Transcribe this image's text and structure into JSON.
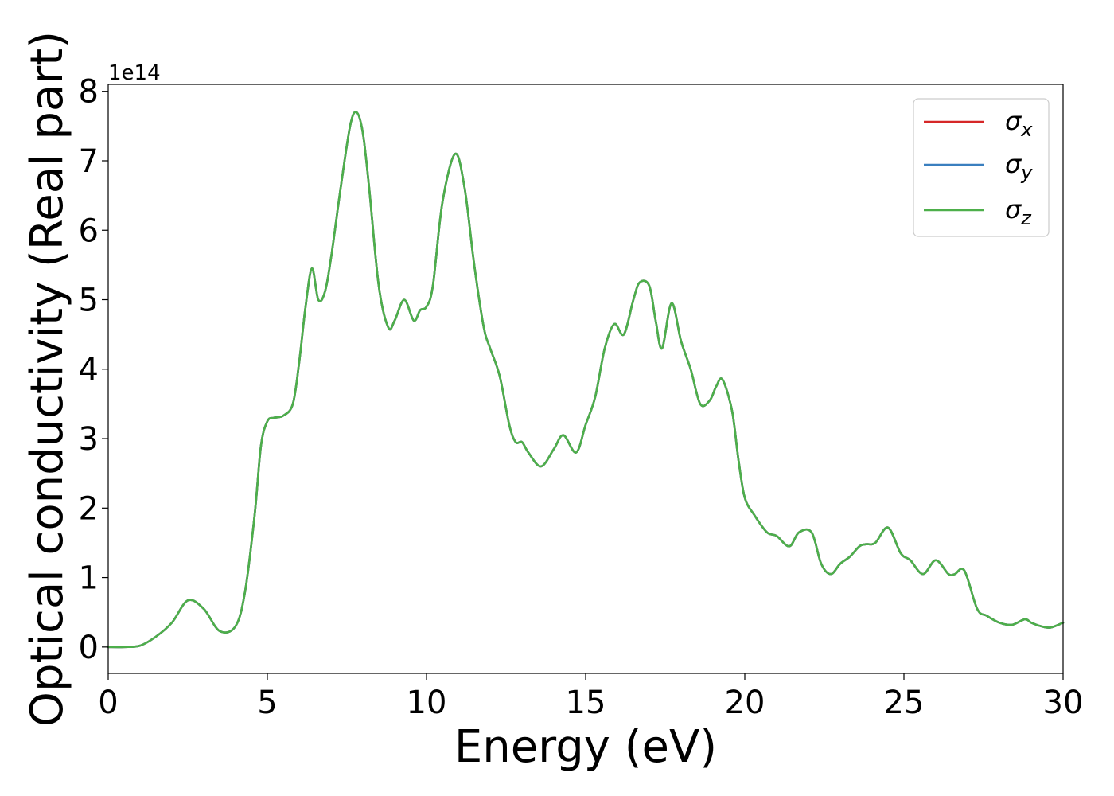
{
  "chart_data": {
    "type": "line",
    "title": "",
    "xlabel": "Energy (eV)",
    "ylabel": "Optical conductivity (Real part)",
    "y_offset_label": "1e14",
    "y_scale_factor": 100000000000000.0,
    "xlim": [
      0,
      30
    ],
    "ylim": [
      -0.38,
      8.1
    ],
    "x_ticks": [
      0,
      5,
      10,
      15,
      20,
      25,
      30
    ],
    "x_tick_labels": [
      "0",
      "5",
      "10",
      "15",
      "20",
      "25",
      "30"
    ],
    "y_ticks": [
      0,
      1,
      2,
      3,
      4,
      5,
      6,
      7,
      8
    ],
    "y_tick_labels": [
      "0",
      "1",
      "2",
      "3",
      "4",
      "5",
      "6",
      "7",
      "8"
    ],
    "grid": false,
    "legend_position": "upper right",
    "series": [
      {
        "name": "σx",
        "symbol": "σ",
        "subscript": "x",
        "color": "#d62728",
        "x": [
          0,
          0.5,
          1.0,
          1.5,
          2.0,
          2.5,
          3.0,
          3.5,
          4.0,
          4.3,
          4.6,
          4.8,
          5.0,
          5.2,
          5.5,
          5.8,
          6.0,
          6.2,
          6.4,
          6.6,
          6.8,
          7.0,
          7.3,
          7.6,
          7.8,
          8.0,
          8.2,
          8.5,
          8.8,
          9.0,
          9.3,
          9.6,
          9.8,
          10.0,
          10.2,
          10.5,
          10.9,
          11.2,
          11.5,
          11.8,
          12.0,
          12.3,
          12.6,
          12.8,
          13.0,
          13.2,
          13.6,
          14.0,
          14.3,
          14.7,
          15.0,
          15.3,
          15.6,
          15.9,
          16.2,
          16.5,
          16.7,
          17.0,
          17.2,
          17.4,
          17.7,
          18.0,
          18.3,
          18.6,
          18.9,
          19.1,
          19.3,
          19.6,
          19.8,
          20.0,
          20.3,
          20.7,
          21.0,
          21.4,
          21.7,
          22.1,
          22.4,
          22.7,
          23.0,
          23.3,
          23.6,
          23.8,
          24.1,
          24.5,
          24.9,
          25.2,
          25.6,
          26.0,
          26.4,
          26.6,
          26.9,
          27.3,
          27.6,
          28.0,
          28.4,
          28.8,
          29.0,
          29.3,
          29.6,
          30.0
        ],
        "y": [
          0.0,
          0.0,
          0.02,
          0.15,
          0.35,
          0.67,
          0.55,
          0.23,
          0.3,
          0.8,
          1.9,
          2.9,
          3.25,
          3.3,
          3.33,
          3.5,
          4.1,
          4.9,
          5.45,
          5.0,
          5.1,
          5.6,
          6.6,
          7.5,
          7.7,
          7.4,
          6.6,
          5.2,
          4.6,
          4.7,
          5.0,
          4.7,
          4.85,
          4.9,
          5.2,
          6.4,
          7.1,
          6.6,
          5.5,
          4.6,
          4.3,
          3.9,
          3.2,
          2.95,
          2.95,
          2.8,
          2.6,
          2.85,
          3.05,
          2.8,
          3.2,
          3.6,
          4.3,
          4.65,
          4.5,
          5.0,
          5.25,
          5.2,
          4.7,
          4.3,
          4.95,
          4.4,
          4.0,
          3.5,
          3.55,
          3.75,
          3.85,
          3.4,
          2.7,
          2.15,
          1.9,
          1.65,
          1.6,
          1.45,
          1.65,
          1.65,
          1.2,
          1.05,
          1.2,
          1.3,
          1.45,
          1.48,
          1.5,
          1.72,
          1.35,
          1.25,
          1.05,
          1.25,
          1.05,
          1.05,
          1.1,
          0.55,
          0.45,
          0.35,
          0.32,
          0.4,
          0.35,
          0.3,
          0.28,
          0.35
        ]
      },
      {
        "name": "σy",
        "symbol": "σ",
        "subscript": "y",
        "color": "#3a7fbf",
        "x": [
          0,
          0.5,
          1.0,
          1.5,
          2.0,
          2.5,
          3.0,
          3.5,
          4.0,
          4.3,
          4.6,
          4.8,
          5.0,
          5.2,
          5.5,
          5.8,
          6.0,
          6.2,
          6.4,
          6.6,
          6.8,
          7.0,
          7.3,
          7.6,
          7.8,
          8.0,
          8.2,
          8.5,
          8.8,
          9.0,
          9.3,
          9.6,
          9.8,
          10.0,
          10.2,
          10.5,
          10.9,
          11.2,
          11.5,
          11.8,
          12.0,
          12.3,
          12.6,
          12.8,
          13.0,
          13.2,
          13.6,
          14.0,
          14.3,
          14.7,
          15.0,
          15.3,
          15.6,
          15.9,
          16.2,
          16.5,
          16.7,
          17.0,
          17.2,
          17.4,
          17.7,
          18.0,
          18.3,
          18.6,
          18.9,
          19.1,
          19.3,
          19.6,
          19.8,
          20.0,
          20.3,
          20.7,
          21.0,
          21.4,
          21.7,
          22.1,
          22.4,
          22.7,
          23.0,
          23.3,
          23.6,
          23.8,
          24.1,
          24.5,
          24.9,
          25.2,
          25.6,
          26.0,
          26.4,
          26.6,
          26.9,
          27.3,
          27.6,
          28.0,
          28.4,
          28.8,
          29.0,
          29.3,
          29.6,
          30.0
        ],
        "y": [
          0.0,
          0.0,
          0.02,
          0.15,
          0.35,
          0.67,
          0.55,
          0.23,
          0.3,
          0.8,
          1.9,
          2.9,
          3.25,
          3.3,
          3.33,
          3.5,
          4.1,
          4.9,
          5.45,
          5.0,
          5.1,
          5.6,
          6.6,
          7.5,
          7.7,
          7.4,
          6.6,
          5.2,
          4.6,
          4.7,
          5.0,
          4.7,
          4.85,
          4.9,
          5.2,
          6.4,
          7.1,
          6.6,
          5.5,
          4.6,
          4.3,
          3.9,
          3.2,
          2.95,
          2.95,
          2.8,
          2.6,
          2.85,
          3.05,
          2.8,
          3.2,
          3.6,
          4.3,
          4.65,
          4.5,
          5.0,
          5.25,
          5.2,
          4.7,
          4.3,
          4.95,
          4.4,
          4.0,
          3.5,
          3.55,
          3.75,
          3.85,
          3.4,
          2.7,
          2.15,
          1.9,
          1.65,
          1.6,
          1.45,
          1.65,
          1.65,
          1.2,
          1.05,
          1.2,
          1.3,
          1.45,
          1.48,
          1.5,
          1.72,
          1.35,
          1.25,
          1.05,
          1.25,
          1.05,
          1.05,
          1.1,
          0.55,
          0.45,
          0.35,
          0.32,
          0.4,
          0.35,
          0.3,
          0.28,
          0.35
        ]
      },
      {
        "name": "σz",
        "symbol": "σ",
        "subscript": "z",
        "color": "#4daf4a",
        "x": [
          0,
          0.5,
          1.0,
          1.5,
          2.0,
          2.5,
          3.0,
          3.5,
          4.0,
          4.3,
          4.6,
          4.8,
          5.0,
          5.2,
          5.5,
          5.8,
          6.0,
          6.2,
          6.4,
          6.6,
          6.8,
          7.0,
          7.3,
          7.6,
          7.8,
          8.0,
          8.2,
          8.5,
          8.8,
          9.0,
          9.3,
          9.6,
          9.8,
          10.0,
          10.2,
          10.5,
          10.9,
          11.2,
          11.5,
          11.8,
          12.0,
          12.3,
          12.6,
          12.8,
          13.0,
          13.2,
          13.6,
          14.0,
          14.3,
          14.7,
          15.0,
          15.3,
          15.6,
          15.9,
          16.2,
          16.5,
          16.7,
          17.0,
          17.2,
          17.4,
          17.7,
          18.0,
          18.3,
          18.6,
          18.9,
          19.1,
          19.3,
          19.6,
          19.8,
          20.0,
          20.3,
          20.7,
          21.0,
          21.4,
          21.7,
          22.1,
          22.4,
          22.7,
          23.0,
          23.3,
          23.6,
          23.8,
          24.1,
          24.5,
          24.9,
          25.2,
          25.6,
          26.0,
          26.4,
          26.6,
          26.9,
          27.3,
          27.6,
          28.0,
          28.4,
          28.8,
          29.0,
          29.3,
          29.6,
          30.0
        ],
        "y": [
          0.0,
          0.0,
          0.02,
          0.15,
          0.35,
          0.67,
          0.55,
          0.23,
          0.3,
          0.8,
          1.9,
          2.9,
          3.25,
          3.3,
          3.33,
          3.5,
          4.1,
          4.9,
          5.45,
          5.0,
          5.1,
          5.6,
          6.6,
          7.5,
          7.7,
          7.4,
          6.6,
          5.2,
          4.6,
          4.7,
          5.0,
          4.7,
          4.85,
          4.9,
          5.2,
          6.4,
          7.1,
          6.6,
          5.5,
          4.6,
          4.3,
          3.9,
          3.2,
          2.95,
          2.95,
          2.8,
          2.6,
          2.85,
          3.05,
          2.8,
          3.2,
          3.6,
          4.3,
          4.65,
          4.5,
          5.0,
          5.25,
          5.2,
          4.7,
          4.3,
          4.95,
          4.4,
          4.0,
          3.5,
          3.55,
          3.75,
          3.85,
          3.4,
          2.7,
          2.15,
          1.9,
          1.65,
          1.6,
          1.45,
          1.65,
          1.65,
          1.2,
          1.05,
          1.2,
          1.3,
          1.45,
          1.48,
          1.5,
          1.72,
          1.35,
          1.25,
          1.05,
          1.25,
          1.05,
          1.05,
          1.1,
          0.55,
          0.45,
          0.35,
          0.32,
          0.4,
          0.35,
          0.3,
          0.28,
          0.35
        ]
      }
    ]
  }
}
